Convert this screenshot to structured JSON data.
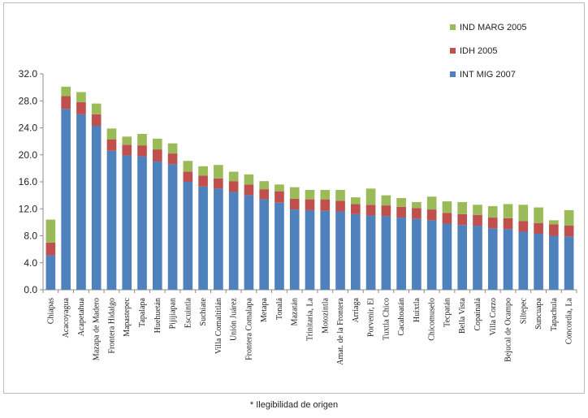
{
  "chart_data": {
    "type": "bar",
    "stacked": true,
    "title": "",
    "xlabel": "",
    "ylabel": "",
    "ylim": [
      0,
      32
    ],
    "yticks": [
      "0.0",
      "4.0",
      "8.0",
      "12.0",
      "16.0",
      "20.0",
      "24.0",
      "28.0",
      "32.0"
    ],
    "grid": false,
    "legend_position": "top-right",
    "categories": [
      "Chiapas",
      "Acacoyagua",
      "Acapetahua",
      "Mazapa de Madero",
      "Frontera Hidalgo",
      "Mapastepec",
      "Tapalapa",
      "Huehuetán",
      "Pijijiapan",
      "Escuintla",
      "Suchiate",
      "Villa Comaltitlán",
      "Unión Juárez",
      "Frontera Comalapa",
      "Metapa",
      "Tonalá",
      "Mazatán",
      "Trinitaria, La",
      "Motozintla",
      "Amat. de la Frontera",
      "Arriaga",
      "Porvenir, El",
      "Tuxtla Chico",
      "Cacahoatán",
      "Huixtla",
      "Chicomuselo",
      "Tecpatán",
      "Bella Vista",
      "Copainalá",
      "Villa Corzo",
      "Bejucal de Ocampo",
      "Siltepec",
      "Suncuapa",
      "Tapachula",
      "Concordia, La"
    ],
    "series": [
      {
        "name": "INT MIG 2007",
        "color": "#4f81bd",
        "values": [
          5.1,
          26.8,
          26.0,
          24.3,
          20.6,
          19.9,
          19.8,
          19.0,
          18.6,
          16.0,
          15.3,
          15.0,
          14.5,
          14.0,
          13.4,
          12.9,
          11.9,
          11.8,
          11.7,
          11.6,
          11.2,
          11.0,
          10.9,
          10.7,
          10.5,
          10.3,
          9.8,
          9.6,
          9.5,
          9.1,
          9.0,
          8.6,
          8.3,
          8.0,
          7.9
        ]
      },
      {
        "name": "IDH 2005",
        "color": "#c0504d",
        "values": [
          1.9,
          1.9,
          1.8,
          1.7,
          1.7,
          1.6,
          1.6,
          1.8,
          1.6,
          1.5,
          1.6,
          1.5,
          1.6,
          1.6,
          1.5,
          1.7,
          1.6,
          1.6,
          1.7,
          1.6,
          1.5,
          1.6,
          1.6,
          1.6,
          1.6,
          1.6,
          1.6,
          1.6,
          1.6,
          1.6,
          1.6,
          1.6,
          1.6,
          1.7,
          1.6
        ]
      },
      {
        "name": "IND MARG 2005",
        "color": "#9bbb59",
        "values": [
          3.4,
          1.4,
          1.5,
          1.6,
          1.6,
          1.2,
          1.7,
          1.6,
          1.5,
          1.6,
          1.4,
          2.0,
          1.4,
          1.5,
          1.2,
          1.0,
          1.7,
          1.4,
          1.4,
          1.6,
          1.0,
          2.4,
          1.5,
          1.3,
          0.9,
          1.9,
          1.7,
          1.8,
          1.5,
          1.7,
          2.1,
          2.4,
          2.3,
          0.6,
          2.3
        ]
      }
    ]
  },
  "footnote": "* Ilegibilidad de origen"
}
